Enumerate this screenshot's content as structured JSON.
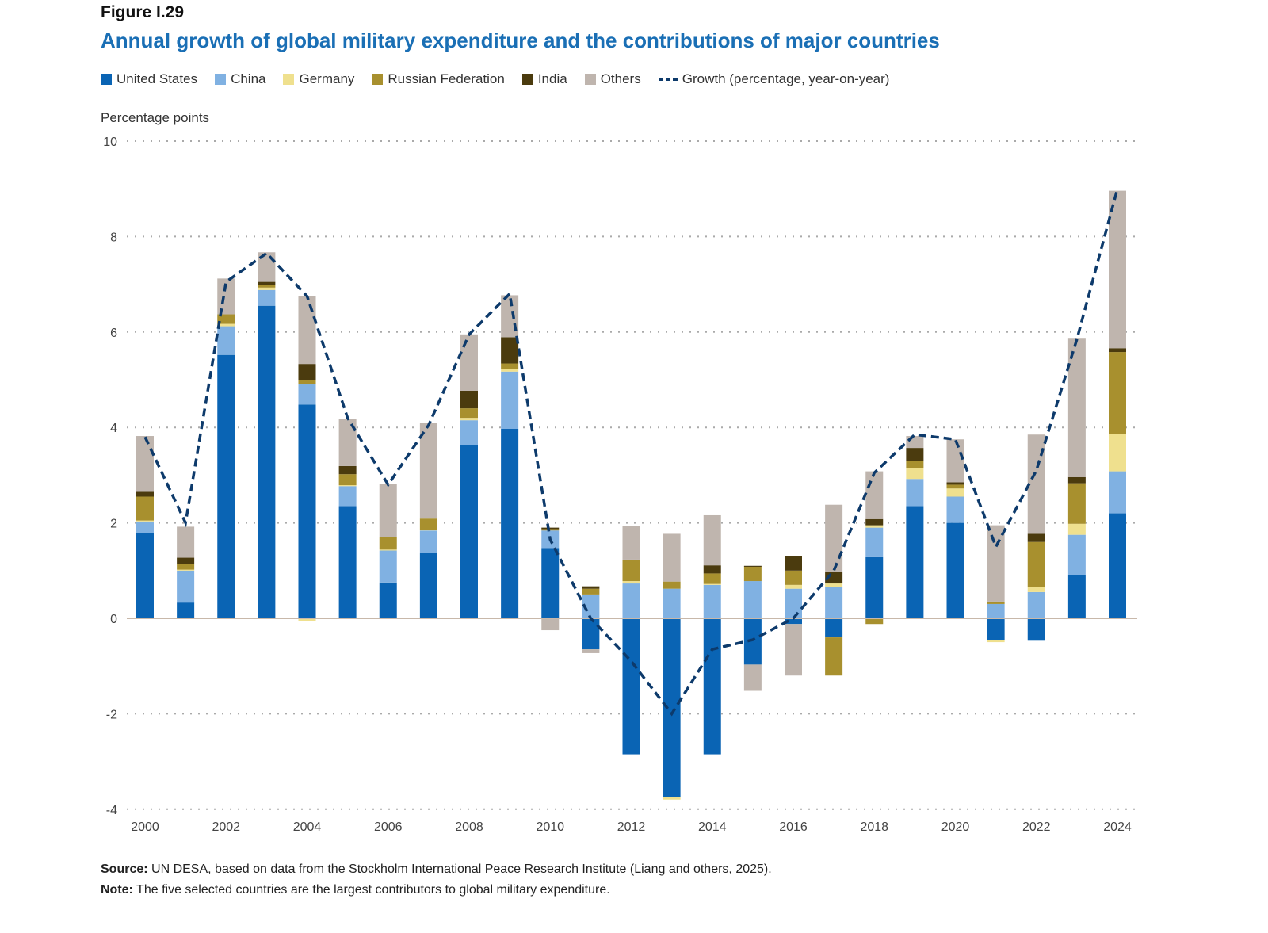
{
  "figure_label": "Figure I.29",
  "chart_data": {
    "type": "bar",
    "stacked": true,
    "title": "Annual growth of global military expenditure and the contributions of major countries",
    "ylabel": "Percentage points",
    "xlabel": "",
    "ylim": [
      -4,
      10
    ],
    "yticks": [
      -4,
      -2,
      0,
      2,
      4,
      6,
      8,
      10
    ],
    "grid": true,
    "legend_placement": "top",
    "categories": [
      2000,
      2001,
      2002,
      2003,
      2004,
      2005,
      2006,
      2007,
      2008,
      2009,
      2010,
      2011,
      2012,
      2013,
      2014,
      2015,
      2016,
      2017,
      2018,
      2019,
      2020,
      2021,
      2022,
      2023,
      2024
    ],
    "xtick_labels": [
      "2000",
      "2002",
      "2004",
      "2006",
      "2008",
      "2010",
      "2012",
      "2014",
      "2016",
      "2018",
      "2020",
      "2022",
      "2024"
    ],
    "series": [
      {
        "name": "United States",
        "color": "#0a64b4",
        "values": [
          1.78,
          0.33,
          5.52,
          6.55,
          4.48,
          2.35,
          0.75,
          1.37,
          3.63,
          3.97,
          1.47,
          -0.65,
          -2.85,
          -3.75,
          -2.85,
          -0.97,
          -0.12,
          -0.4,
          1.28,
          2.35,
          2.0,
          -0.45,
          -0.47,
          0.9,
          2.2
        ]
      },
      {
        "name": "China",
        "color": "#80b1e2",
        "values": [
          0.25,
          0.67,
          0.6,
          0.33,
          0.42,
          0.42,
          0.67,
          0.47,
          0.52,
          1.2,
          0.37,
          0.5,
          0.73,
          0.62,
          0.7,
          0.78,
          0.62,
          0.65,
          0.62,
          0.57,
          0.55,
          0.3,
          0.55,
          0.85,
          0.88
        ]
      },
      {
        "name": "Germany",
        "color": "#efe08e",
        "values": [
          0.02,
          0.02,
          0.05,
          0.05,
          -0.05,
          0.02,
          0.02,
          0.02,
          0.05,
          0.05,
          0,
          0,
          0.05,
          -0.05,
          0.02,
          0,
          0.08,
          0.08,
          0.05,
          0.23,
          0.17,
          -0.05,
          0.1,
          0.23,
          0.78
        ]
      },
      {
        "name": "Russian Federation",
        "color": "#a8902e",
        "values": [
          0.5,
          0.12,
          0.2,
          0.05,
          0.1,
          0.23,
          0.27,
          0.23,
          0.2,
          0.12,
          0.03,
          0.12,
          0.45,
          0.15,
          0.22,
          0.3,
          0.3,
          -0.8,
          -0.12,
          0.15,
          0.08,
          0.05,
          0.95,
          0.85,
          1.72
        ]
      },
      {
        "name": "India",
        "color": "#4b3b0e",
        "values": [
          0.1,
          0.13,
          0,
          0.07,
          0.33,
          0.17,
          0,
          0,
          0.37,
          0.55,
          0.03,
          0.05,
          0,
          0,
          0.17,
          0.02,
          0.3,
          0.25,
          0.13,
          0.27,
          0.05,
          0,
          0.17,
          0.13,
          0.08
        ]
      },
      {
        "name": "Others",
        "color": "#bfb5ae",
        "values": [
          1.17,
          0.65,
          0.75,
          0.62,
          1.43,
          0.98,
          1.1,
          2.0,
          1.18,
          0.88,
          -0.25,
          -0.08,
          0.7,
          1.0,
          1.05,
          -0.55,
          -1.08,
          1.4,
          1.0,
          0.25,
          0.9,
          1.6,
          2.08,
          2.9,
          3.3
        ]
      }
    ],
    "line": {
      "name": "Growth (percentage, year-on-year)",
      "color": "#0d3a6b",
      "values": [
        3.8,
        2.0,
        7.05,
        7.65,
        6.75,
        4.2,
        2.8,
        4.05,
        5.95,
        6.8,
        1.65,
        0,
        -0.9,
        -2.0,
        -0.65,
        -0.45,
        0,
        1.0,
        3.05,
        3.85,
        3.75,
        1.5,
        3.1,
        5.85,
        9.0
      ]
    }
  },
  "source_label": "Source:",
  "source_text": " UN DESA, based on data from the Stockholm International Peace Research Institute (Liang and others, 2025).",
  "note_label": "Note:",
  "note_text": " The five selected countries are the largest contributors to global military expenditure."
}
